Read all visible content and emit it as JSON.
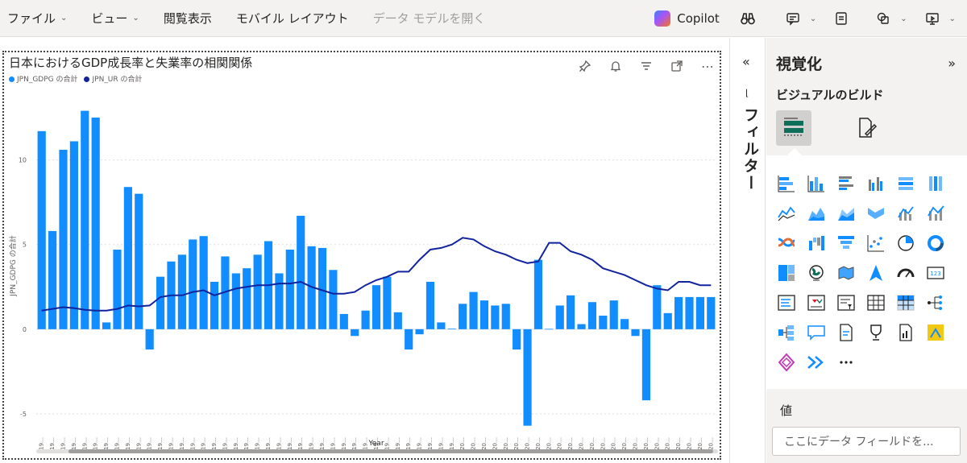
{
  "menu": {
    "file": "ファイル",
    "view": "ビュー",
    "reading_view": "閲覧表示",
    "mobile_layout": "モバイル レイアウト",
    "open_data_model": "データ モデルを開く",
    "copilot": "Copilot"
  },
  "visual": {
    "title": "日本におけるGDP成長率と失業率の相関関係",
    "legend": [
      {
        "label": "JPN_GDPG の合計",
        "color": "#118dff"
      },
      {
        "label": "JPN_UR の合計",
        "color": "#12239e"
      }
    ],
    "xlabel": "Year",
    "ylabel": "JPN_GDPG の合計",
    "tick_label": "19..."
  },
  "chart_data": {
    "type": "bar",
    "title": "日本におけるGDP成長率と失業率の相関関係",
    "xlabel": "Year",
    "ylabel": "JPN_GDPG の合計",
    "ylim": [
      -6,
      13.5
    ],
    "yticks": [
      -5,
      0,
      5,
      10
    ],
    "grid": true,
    "legend_position": "top-left",
    "categories": [
      "1961",
      "1962",
      "1963",
      "1964",
      "1965",
      "1966",
      "1967",
      "1968",
      "1969",
      "1970",
      "1971",
      "1972",
      "1973",
      "1974",
      "1975",
      "1976",
      "1977",
      "1978",
      "1979",
      "1980",
      "1981",
      "1982",
      "1983",
      "1984",
      "1985",
      "1986",
      "1987",
      "1988",
      "1989",
      "1990",
      "1991",
      "1992",
      "1993",
      "1994",
      "1995",
      "1996",
      "1997",
      "1998",
      "1999",
      "2000",
      "2001",
      "2002",
      "2003",
      "2004",
      "2005",
      "2006",
      "2007",
      "2008",
      "2009",
      "2010",
      "2011",
      "2012",
      "2013",
      "2014",
      "2015",
      "2016",
      "2017",
      "2018",
      "2019",
      "2020",
      "2021",
      "2022",
      "2023"
    ],
    "tick_labels": [
      "19…",
      "19…",
      "19…",
      "19…",
      "19…",
      "19…",
      "19…",
      "19…",
      "19…",
      "19…",
      "19…",
      "19…",
      "19…",
      "19…",
      "19…",
      "19…",
      "19…",
      "19…",
      "19…",
      "19…",
      "19…",
      "19…",
      "19…",
      "19…",
      "19…",
      "19…",
      "19…",
      "19…",
      "19…",
      "19…",
      "19…",
      "19…",
      "19…",
      "19…",
      "19…",
      "19…",
      "19…",
      "19…",
      "19…",
      "20…",
      "20…",
      "20…",
      "20…",
      "20…",
      "20…",
      "20…",
      "20…",
      "20…",
      "20…",
      "20…",
      "20…",
      "20…",
      "20…",
      "20…",
      "20…",
      "20…",
      "20…",
      "20…",
      "20…",
      "20…",
      "20…",
      "20…",
      "20…"
    ],
    "series": [
      {
        "name": "JPN_GDPG の合計",
        "kind": "bar",
        "color": "#118dff",
        "values": [
          11.7,
          5.8,
          10.6,
          11.1,
          12.9,
          12.5,
          0.4,
          4.7,
          8.4,
          8.0,
          -1.2,
          3.1,
          4.0,
          4.4,
          5.3,
          5.5,
          2.8,
          4.3,
          3.3,
          3.6,
          4.4,
          5.2,
          3.3,
          4.7,
          6.7,
          4.9,
          4.8,
          3.5,
          0.9,
          -0.4,
          1.1,
          2.6,
          3.1,
          1.0,
          -1.2,
          -0.3,
          2.8,
          0.4,
          0.03,
          1.5,
          2.2,
          1.7,
          1.4,
          1.5,
          -1.2,
          -5.7,
          4.1,
          0.02,
          1.4,
          2.0,
          0.3,
          1.6,
          0.8,
          1.7,
          0.6,
          -0.4,
          -4.2,
          2.6,
          0.95,
          1.9,
          1.9,
          1.9,
          1.9
        ]
      },
      {
        "name": "JPN_UR の合計",
        "kind": "line",
        "color": "#12239e",
        "values": [
          1.1,
          1.2,
          1.3,
          1.25,
          1.15,
          1.1,
          1.1,
          1.2,
          1.4,
          1.35,
          1.4,
          1.9,
          2.0,
          2.0,
          2.2,
          2.3,
          2.0,
          2.2,
          2.4,
          2.5,
          2.6,
          2.6,
          2.7,
          2.7,
          2.8,
          2.5,
          2.3,
          2.1,
          2.1,
          2.2,
          2.6,
          2.9,
          3.1,
          3.4,
          3.4,
          4.1,
          4.7,
          4.8,
          5.0,
          5.4,
          5.3,
          4.9,
          4.6,
          4.4,
          4.1,
          3.9,
          4.0,
          5.1,
          5.1,
          4.6,
          4.4,
          4.1,
          3.6,
          3.4,
          3.2,
          2.9,
          2.6,
          2.4,
          2.3,
          2.8,
          2.8,
          2.6,
          2.6
        ]
      }
    ]
  },
  "filters_pane": {
    "label": "フィルター"
  },
  "viz_pane": {
    "title": "視覚化",
    "build_label": "ビジュアルのビルド",
    "values_label": "値",
    "values_placeholder": "ここにデータ フィールドを..."
  }
}
